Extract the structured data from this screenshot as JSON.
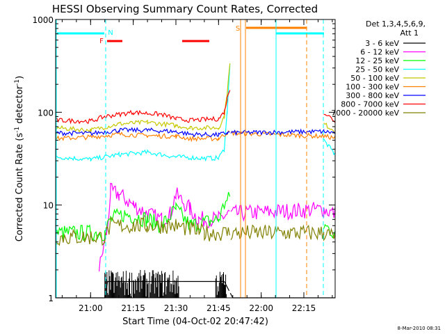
{
  "chart_data": {
    "type": "line",
    "title": "HESSI Observing Summary Count Rates, Corrected",
    "xlabel": "Start Time (04-Oct-02 20:47:42)",
    "ylabel": "Corrected Count Rate (s",
    "ylabel_sup1": "-1",
    "ylabel_mid": " detector",
    "ylabel_sup2": "-1",
    "ylabel_end": ")",
    "yscale": "log",
    "ylim": [
      1,
      1000
    ],
    "xlim": [
      "20:47:42",
      "22:26:00"
    ],
    "x_ticks": [
      "21:00",
      "21:15",
      "21:30",
      "21:45",
      "22:00",
      "22:15"
    ],
    "y_ticks": [
      "1",
      "10",
      "100",
      "1000"
    ],
    "legend_title": "Det 1,3,4,5,6,9,",
    "legend_subtitle": "Att 1",
    "legend_position": "right",
    "footer_date": "8-Mar-2010 08:31",
    "series": [
      {
        "name": "3 - 6 keV",
        "color": "#000000",
        "x": [
          "20:47:42",
          "21:05",
          "21:06",
          "21:30",
          "21:47",
          "21:50",
          "22:22",
          "22:26"
        ],
        "y": [
          1,
          1,
          1.5,
          1.5,
          1.5,
          1,
          1,
          1
        ]
      },
      {
        "name": "6 - 12 keV",
        "color": "#ff00ff",
        "x": [
          "21:03",
          "21:06",
          "21:07",
          "21:10",
          "21:15",
          "21:20",
          "21:25",
          "21:28",
          "21:30",
          "21:35",
          "21:38",
          "21:45",
          "21:48",
          "22:22",
          "22:26"
        ],
        "y": [
          2,
          6,
          14,
          13,
          10,
          8,
          7,
          8,
          13,
          9,
          7,
          7,
          8,
          9,
          8
        ]
      },
      {
        "name": "12 - 25 keV",
        "color": "#00ff00",
        "x": [
          "20:47:42",
          "21:05",
          "21:07",
          "21:12",
          "21:20",
          "21:25",
          "21:30",
          "21:35",
          "21:45",
          "21:47",
          "21:49",
          "22:22",
          "22:26"
        ],
        "y": [
          5,
          5,
          7,
          8,
          7,
          6,
          9,
          6,
          7,
          10,
          12,
          6,
          5
        ]
      },
      {
        "name": "25 - 50 keV",
        "color": "#00ffff",
        "x": [
          "20:47:42",
          "21:00",
          "21:10",
          "21:20",
          "21:30",
          "21:40",
          "21:45",
          "21:47",
          "21:48",
          "21:49",
          "22:22",
          "22:26"
        ],
        "y": [
          33,
          31,
          35,
          37,
          33,
          32,
          32,
          40,
          100,
          330,
          50,
          35
        ]
      },
      {
        "name": "50 - 100 keV",
        "color": "#c8c800",
        "x": [
          "20:47:42",
          "21:00",
          "21:10",
          "21:20",
          "21:30",
          "21:35",
          "21:45",
          "21:47",
          "21:48",
          "21:49",
          "22:22",
          "22:26"
        ],
        "y": [
          68,
          64,
          75,
          78,
          72,
          68,
          68,
          90,
          160,
          330,
          75,
          63
        ]
      },
      {
        "name": "100 - 300 keV",
        "color": "#ff8000",
        "x": [
          "20:47:42",
          "21:00",
          "21:10",
          "21:20",
          "21:30",
          "21:35",
          "21:45",
          "21:48",
          "22:22",
          "22:26"
        ],
        "y": [
          52,
          54,
          58,
          56,
          55,
          52,
          52,
          60,
          55,
          53
        ]
      },
      {
        "name": "300 - 800 keV",
        "color": "#0000ff",
        "x": [
          "20:47:42",
          "21:00",
          "21:10",
          "21:20",
          "21:30",
          "21:35",
          "21:45",
          "21:48",
          "22:22",
          "22:26"
        ],
        "y": [
          60,
          59,
          64,
          64,
          62,
          58,
          57,
          60,
          62,
          60
        ]
      },
      {
        "name": "800 - 7000 keV",
        "color": "#ff0000",
        "x": [
          "20:47:42",
          "21:00",
          "21:05",
          "21:15",
          "21:25",
          "21:30",
          "21:35",
          "21:45",
          "21:47",
          "21:48",
          "21:49",
          "22:22",
          "22:26"
        ],
        "y": [
          82,
          80,
          90,
          100,
          95,
          85,
          82,
          85,
          100,
          140,
          180,
          100,
          80
        ]
      },
      {
        "name": "7000 - 20000 keV",
        "color": "#808000",
        "x": [
          "20:47:42",
          "21:05",
          "21:07",
          "21:20",
          "21:30",
          "21:40",
          "21:48",
          "22:22",
          "22:26"
        ],
        "y": [
          4.5,
          4.5,
          6,
          6,
          6,
          5,
          5,
          5,
          4.5
        ]
      }
    ],
    "annotations": [
      {
        "label": "F",
        "color": "#ff0000"
      },
      {
        "label": "N",
        "color": "#00ffff"
      },
      {
        "label": "S",
        "color": "#ff8000"
      }
    ]
  }
}
